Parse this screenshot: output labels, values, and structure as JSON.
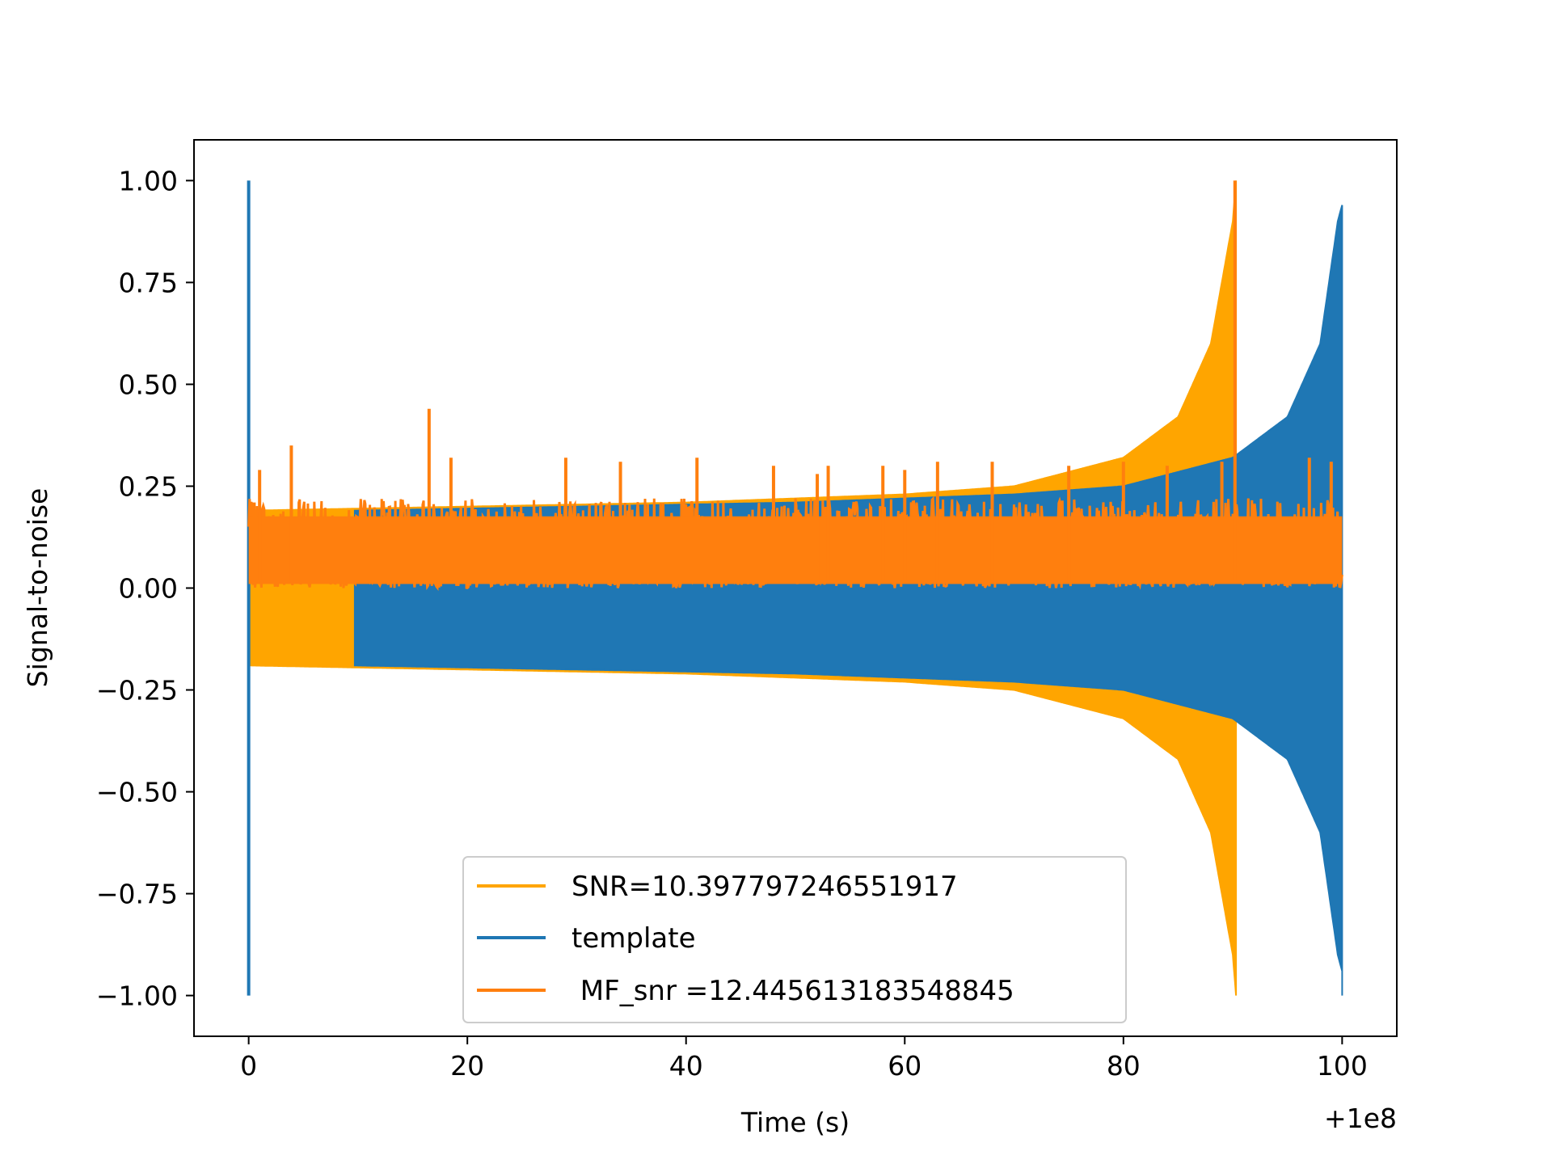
{
  "chart_data": {
    "type": "line",
    "title": "",
    "xlabel": "Time (s)",
    "ylabel": "Signal-to-noise",
    "x_offset_label": "+1e8",
    "xlim": [
      -5,
      105
    ],
    "ylim": [
      -1.1,
      1.1
    ],
    "x_ticks": [
      0,
      20,
      40,
      60,
      80,
      100
    ],
    "x_tick_labels": [
      "0",
      "20",
      "40",
      "60",
      "80",
      "100"
    ],
    "y_ticks": [
      1.0,
      0.75,
      0.5,
      0.25,
      0.0,
      -0.25,
      -0.5,
      -0.75,
      -1.0
    ],
    "y_tick_labels": [
      "1.00",
      "0.75",
      "0.50",
      "0.25",
      "0.00",
      "−0.25",
      "−0.50",
      "−0.75",
      "−1.00"
    ],
    "grid": false,
    "legend_position": "lower-center",
    "series": [
      {
        "name": "SNR=10.397797246551917",
        "color": "#ffa500",
        "kind": "chirp",
        "t_start": 0,
        "t_merge": 90.3,
        "envelope": [
          [
            0,
            0.19
          ],
          [
            20,
            0.2
          ],
          [
            40,
            0.21
          ],
          [
            60,
            0.23
          ],
          [
            70,
            0.25
          ],
          [
            80,
            0.32
          ],
          [
            85,
            0.42
          ],
          [
            88,
            0.6
          ],
          [
            90,
            0.9
          ],
          [
            90.3,
            1.0
          ]
        ]
      },
      {
        "name": "template",
        "color": "#1f77b4",
        "kind": "chirp",
        "t_start": 9.7,
        "t_merge": 100.0,
        "envelope": [
          [
            9.7,
            0.19
          ],
          [
            30,
            0.2
          ],
          [
            50,
            0.21
          ],
          [
            70,
            0.23
          ],
          [
            80,
            0.25
          ],
          [
            90,
            0.32
          ],
          [
            95,
            0.42
          ],
          [
            98,
            0.6
          ],
          [
            99.6,
            0.9
          ],
          [
            100,
            0.94
          ]
        ],
        "spike": {
          "t": 0.0,
          "min": -1.0,
          "max": 1.0
        }
      },
      {
        "name": " MF_snr =12.445613183548845",
        "color": "#ff7f0e",
        "kind": "noise",
        "t_start": 0,
        "t_end": 100,
        "baseline_max": 0.22,
        "peaks": [
          [
            0.5,
            0.21
          ],
          [
            1,
            0.29
          ],
          [
            3.9,
            0.35
          ],
          [
            16.5,
            0.44
          ],
          [
            18.5,
            0.32
          ],
          [
            29,
            0.32
          ],
          [
            34,
            0.31
          ],
          [
            41,
            0.32
          ],
          [
            48,
            0.3
          ],
          [
            52,
            0.28
          ],
          [
            53,
            0.3
          ],
          [
            58,
            0.3
          ],
          [
            60,
            0.29
          ],
          [
            63,
            0.31
          ],
          [
            68,
            0.31
          ],
          [
            75,
            0.3
          ],
          [
            80,
            0.31
          ],
          [
            84,
            0.3
          ],
          [
            89,
            0.31
          ],
          [
            90.2,
            1.0
          ],
          [
            97,
            0.32
          ],
          [
            99,
            0.31
          ]
        ]
      }
    ]
  }
}
